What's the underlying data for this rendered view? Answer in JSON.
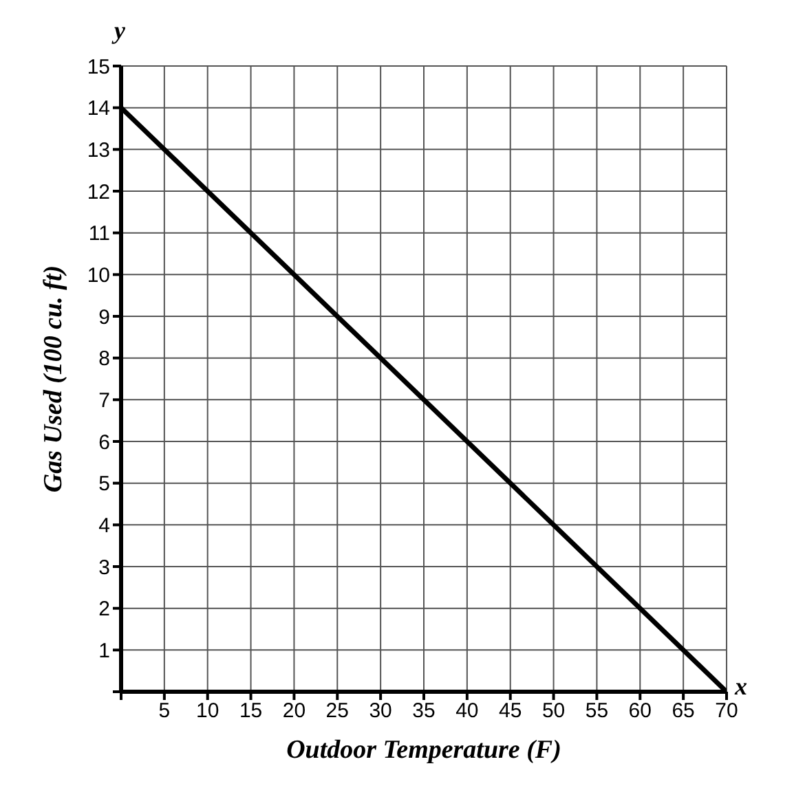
{
  "chart_data": {
    "type": "line",
    "xlabel": "Outdoor Temperature (F)",
    "ylabel": "Gas Used (100 cu. ft)",
    "annotations": [
      "x",
      "y"
    ],
    "x": [
      0,
      70
    ],
    "series": [
      {
        "color": "#000000",
        "values": [
          14,
          0
        ]
      }
    ],
    "xlim": [
      0,
      70
    ],
    "ylim": [
      0,
      15
    ],
    "xticks": [
      {
        "value": 0,
        "label": null
      },
      5,
      10,
      15,
      20,
      25,
      30,
      35,
      40,
      45,
      50,
      55,
      60,
      65,
      70
    ],
    "yticks": [
      {
        "value": 0,
        "label": null
      },
      1,
      2,
      3,
      4,
      5,
      6,
      7,
      8,
      9,
      10,
      11,
      12,
      13,
      14,
      15
    ],
    "grid": true,
    "marker": "none",
    "line_style": "solid",
    "legend": false
  }
}
